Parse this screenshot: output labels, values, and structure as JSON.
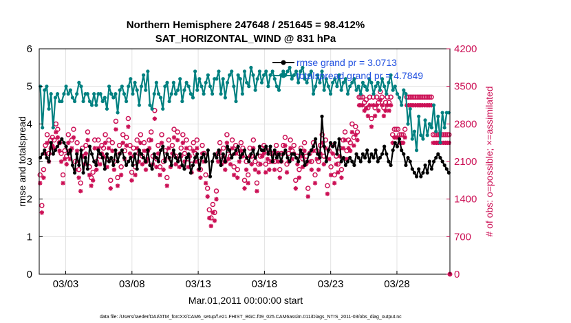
{
  "page": {
    "title_line1": "Northern Hemisphere 247648 / 251645 = 98.412%",
    "title_line2": "SAT_HORIZONTAL_WIND @ 831 hPa",
    "footer": "data file: /Users/raeder/DAI/ATM_forcXX/CAM6_setup/f.e21.FHIST_BGC.f09_025.CAM6assim.011/Diags_NTrS_2011-03/obs_diag_output.nc"
  },
  "chart_data": {
    "type": "line",
    "title": "Northern Hemisphere 247648 / 251645 = 98.412%",
    "subtitle": "SAT_HORIZONTAL_WIND @ 831 hPa",
    "xlabel": "Mar.01,2011 00:00:00 start",
    "ylabel": "rmse and totalspread",
    "y2label": "# of obs: o=possible; ×=assimilated",
    "xlim": [
      1.0,
      32.0
    ],
    "ylim": [
      0,
      6
    ],
    "y2lim": [
      0,
      4200
    ],
    "x_ticks": [
      3,
      8,
      13,
      18,
      23,
      28
    ],
    "x_tick_labels": [
      "03/03",
      "03/08",
      "03/13",
      "03/18",
      "03/23",
      "03/28"
    ],
    "y_ticks": [
      0,
      1,
      2,
      3,
      4,
      5,
      6
    ],
    "y2_ticks": [
      0,
      700,
      1400,
      2100,
      2800,
      3500,
      4200
    ],
    "grid": true,
    "legend_position": "top-right",
    "colors": {
      "rmse": "#000000",
      "spread": "#008080",
      "obs": "#cc1156",
      "legend_text": "#1f4fe0"
    },
    "series": [
      {
        "name": "rmse grand pr = 3.0713",
        "axis": "left",
        "marker": "circle",
        "values": [
          3.1,
          3.2,
          3.3,
          3.1,
          3.0,
          3.5,
          3.2,
          3.3,
          3.4,
          3.5,
          3.6,
          3.5,
          3.4,
          3.2,
          3.3,
          2.9,
          2.7,
          3.2,
          2.9,
          3.3,
          2.7,
          3.1,
          2.8,
          3.4,
          3.2,
          3.0,
          2.9,
          3.3,
          3.2,
          3.1,
          2.8,
          3.2,
          3.0,
          3.1,
          2.9,
          3.3,
          3.0,
          3.2,
          3.3,
          3.1,
          2.9,
          3.0,
          3.1,
          2.9,
          3.2,
          2.8,
          3.3,
          3.2,
          3.1,
          3.0,
          3.3,
          2.9,
          2.8,
          3.2,
          3.1,
          3.0,
          3.3,
          3.4,
          3.0,
          3.2,
          3.1,
          2.9,
          3.3,
          3.1,
          3.0,
          3.2,
          2.9,
          2.8,
          3.1,
          3.2,
          2.7,
          2.9,
          3.1,
          3.2,
          2.8,
          3.1,
          3.2,
          3.0,
          3.3,
          2.6,
          3.0,
          3.2,
          3.1,
          3.3,
          2.9,
          3.2,
          3.0,
          3.4,
          3.3,
          3.1,
          3.2,
          3.3,
          3.4,
          3.1,
          3.2,
          3.3,
          3.1,
          3.0,
          3.2,
          3.3,
          3.1,
          3.2,
          3.4,
          3.3,
          3.3,
          3.4,
          3.2,
          3.4,
          3.0,
          3.3,
          3.1,
          3.2,
          3.0,
          3.2,
          3.3,
          3.1,
          3.0,
          3.2,
          3.2,
          3.1,
          3.0,
          3.3,
          3.2,
          2.9,
          3.0,
          3.2,
          3.3,
          3.4,
          3.6,
          3.2,
          3.1,
          4.2,
          3.4,
          3.0,
          3.3,
          3.5,
          3.4,
          3.5,
          3.2,
          3.6,
          3.0,
          3.1,
          2.9,
          3.0,
          3.1,
          3.0,
          2.9,
          3.2,
          3.1,
          3.0,
          3.2,
          3.1,
          3.3,
          3.0,
          3.2,
          3.1,
          3.3,
          3.0,
          3.1,
          3.2,
          3.4,
          3.2,
          3.0,
          2.9,
          3.3,
          3.5,
          3.4,
          3.6,
          3.3,
          3.2,
          2.9,
          3.1,
          3.0,
          2.8,
          2.7,
          2.6,
          2.8,
          2.6,
          2.7,
          2.9,
          2.7,
          3.0,
          2.8,
          3.0,
          3.1,
          3.2,
          3.1,
          3.0,
          2.9,
          2.8,
          2.7
        ]
      },
      {
        "name": "totalspread grand pr = 4.7849",
        "axis": "left",
        "marker": "star",
        "values": [
          5.0,
          3.9,
          4.9,
          5.0,
          4.4,
          4.8,
          3.9,
          4.7,
          4.8,
          4.6,
          4.6,
          4.8,
          5.0,
          4.8,
          4.9,
          4.7,
          4.6,
          4.8,
          5.1,
          5.0,
          4.6,
          4.8,
          4.8,
          4.6,
          4.5,
          4.8,
          4.5,
          4.8,
          4.8,
          4.6,
          4.7,
          4.4,
          5.0,
          4.8,
          4.7,
          4.8,
          4.3,
          4.9,
          5.0,
          4.8,
          4.6,
          5.0,
          5.2,
          4.8,
          5.1,
          4.9,
          4.5,
          5.0,
          5.3,
          4.9,
          5.4,
          4.5,
          4.4,
          4.8,
          5.1,
          4.8,
          4.7,
          4.4,
          5.0,
          5.1,
          4.6,
          4.8,
          5.1,
          4.8,
          4.9,
          5.2,
          4.6,
          4.9,
          5.1,
          5.0,
          4.8,
          4.7,
          5.4,
          4.9,
          5.2,
          5.0,
          4.8,
          5.1,
          5.3,
          5.0,
          4.8,
          5.2,
          5.2,
          5.4,
          4.8,
          5.2,
          4.7,
          5.1,
          5.3,
          5.4,
          5.0,
          4.6,
          5.3,
          5.2,
          4.8,
          5.4,
          5.1,
          5.0,
          5.5,
          5.3,
          4.9,
          5.2,
          5.4,
          5.1,
          5.3,
          5.4,
          5.0,
          5.3,
          5.4,
          5.2,
          5.0,
          4.9,
          5.3,
          5.4,
          5.3,
          5.4,
          5.5,
          5.2,
          5.3,
          5.4,
          5.1,
          5.4,
          5.5,
          5.2,
          5.1,
          5.3,
          5.4,
          4.8,
          5.0,
          5.3,
          5.1,
          5.4,
          4.9,
          5.2,
          5.0,
          4.8,
          5.1,
          5.2,
          5.0,
          5.3,
          4.9,
          5.1,
          5.2,
          4.8,
          5.0,
          5.1,
          5.2,
          4.9,
          5.0,
          4.8,
          5.1,
          5.0,
          4.9,
          5.2,
          5.1,
          4.8,
          5.0,
          5.1,
          4.9,
          5.2,
          5.0,
          4.8,
          5.1,
          5.3,
          4.9,
          5.0,
          4.8,
          4.7,
          4.5,
          4.9,
          4.8,
          4.0,
          4.4,
          3.6,
          3.8,
          3.3,
          4.2,
          3.7,
          3.6,
          4.1,
          3.7,
          4.0,
          3.9,
          4.5,
          3.8,
          4.2,
          3.5,
          4.3,
          3.9,
          4.3,
          4.3
        ]
      },
      {
        "name": "obs possible",
        "axis": "right",
        "marker": "o",
        "values": [
          1850,
          1280,
          1950,
          2400,
          2600,
          2250,
          2500,
          2550,
          2500,
          2800,
          2700,
          2450,
          2250,
          1850,
          2300,
          2200,
          2600,
          2300,
          2500,
          2700,
          2100,
          2450,
          1950,
          1700,
          2350,
          2200,
          2400,
          2650,
          2000,
          1800,
          1900,
          2500,
          2100,
          2500,
          2200,
          2400,
          2350,
          2600,
          2150,
          2500,
          1750,
          2450,
          2100,
          2850,
          1800,
          2400,
          2000,
          2600,
          2300,
          2550,
          2900,
          2400,
          1900,
          2350,
          2000,
          2500,
          2250,
          2600,
          2200,
          2450,
          2100,
          2300,
          2500,
          2650,
          2200,
          3050,
          2150,
          2400,
          2000,
          2600,
          2100,
          2300,
          1800,
          2500,
          2150,
          2400,
          2700,
          2200,
          2650,
          2150,
          2350,
          2600,
          2250,
          2500,
          2150,
          2350,
          2050,
          2450,
          2250,
          2500,
          2100,
          1950,
          2400,
          2250,
          1850,
          1600,
          1200,
          1050,
          1300,
          1150,
          1550,
          2250,
          2450,
          2200,
          2350,
          2100,
          2600,
          2300,
          2200,
          2500,
          2000,
          2400,
          1950,
          2250,
          2450,
          2350,
          1750,
          2100,
          1850,
          2350,
          2200,
          2500,
          2100,
          1700,
          2050,
          2200,
          2350,
          2400,
          2050,
          2300,
          2100,
          2250,
          2250,
          2100,
          2400,
          2250,
          1950,
          2250,
          2400,
          2550,
          2050,
          2250,
          2500,
          2300,
          2400,
          1750,
          2200,
          1950,
          2350,
          2150,
          2450,
          2200,
          1600,
          2250,
          2100,
          2450,
          1850,
          2300,
          2100,
          2400,
          2600,
          2200,
          2500,
          1650,
          2300,
          2000,
          2400,
          1850,
          2200,
          2050,
          2350,
          1950,
          2500,
          2650,
          2300,
          2500,
          2450,
          2800,
          2550,
          2750,
          2650,
          3300,
          3300,
          3300,
          3200,
          3250,
          3100,
          3300,
          2900,
          3300,
          3100,
          3300,
          3200,
          3400,
          3300,
          3100,
          3200,
          3300,
          3200,
          3300,
          2600,
          2700,
          2700,
          2700,
          2600,
          2600,
          2600,
          2700,
          3300,
          3300,
          3300,
          3300,
          3300,
          3300,
          3300,
          3300,
          3300,
          3300,
          3300,
          3300,
          3300,
          3300,
          3300,
          2600,
          2600,
          2600,
          2600,
          2600,
          2600,
          2600,
          2600,
          2600,
          2600
        ]
      },
      {
        "name": "obs assimilated",
        "axis": "right",
        "marker": "asterisk",
        "values": [
          1800,
          1250,
          1900,
          2350,
          2550,
          2200,
          2450,
          2500,
          2450,
          2750,
          2650,
          2400,
          2200,
          1800,
          2250,
          2150,
          2550,
          2250,
          2450,
          2650,
          2050,
          2400,
          1900,
          1650,
          2300,
          2150,
          2350,
          2600,
          1950,
          1750,
          1850,
          2450,
          2050,
          2450,
          2150,
          2350,
          2300,
          2550,
          2100,
          2450,
          1700,
          2400,
          2050,
          2800,
          1750,
          2350,
          1950,
          2550,
          2250,
          2500,
          2850,
          2350,
          1850,
          2300,
          1950,
          2450,
          2200,
          2550,
          2150,
          2400,
          2050,
          2250,
          2450,
          2600,
          2150,
          3000,
          2100,
          2350,
          1950,
          2550,
          2050,
          2250,
          1750,
          2450,
          2100,
          2350,
          2650,
          2150,
          2600,
          2100,
          2300,
          2550,
          2200,
          2450,
          2100,
          2300,
          2000,
          2400,
          2200,
          2450,
          2050,
          1900,
          2350,
          2200,
          1800,
          1550,
          1150,
          1000,
          1250,
          1100,
          1500,
          2200,
          2400,
          2150,
          2300,
          2050,
          2550,
          2250,
          2150,
          2450,
          1950,
          2350,
          1900,
          2200,
          2400,
          2300,
          1700,
          2050,
          1800,
          2300,
          2150,
          2450,
          2050,
          1650,
          2000,
          2150,
          2300,
          2350,
          2000,
          2250,
          2050,
          2200,
          2200,
          2050,
          2350,
          2200,
          1900,
          2200,
          2350,
          2500,
          2000,
          2200,
          2450,
          2250,
          2350,
          1700,
          2150,
          1900,
          2300,
          2100,
          2400,
          2150,
          1550,
          2200,
          2050,
          2400,
          1800,
          2250,
          2050,
          2350,
          2550,
          2150,
          2450,
          1600,
          2250,
          1950,
          2350,
          1800,
          2150,
          2000,
          2300,
          1900,
          2450,
          2600,
          2250,
          2450,
          2400,
          2750,
          2500,
          2700,
          2600,
          3250,
          3250,
          3250,
          3150,
          3200,
          3050,
          3250,
          2850,
          3250,
          3050,
          3250,
          3150,
          3350,
          3250,
          3050,
          3150,
          3250,
          3150,
          3250,
          2550,
          2650,
          2650,
          2650,
          2550,
          2550,
          2550,
          2650,
          3250,
          3250,
          3250,
          3250,
          3250,
          3250,
          3250,
          3250,
          3250,
          3250,
          3250,
          3250,
          3250,
          3250,
          3250,
          2550,
          2550,
          2550,
          2550,
          2550,
          2550,
          2550,
          2550,
          2550,
          2550
        ]
      }
    ],
    "right_axis_end_marker": 0
  }
}
